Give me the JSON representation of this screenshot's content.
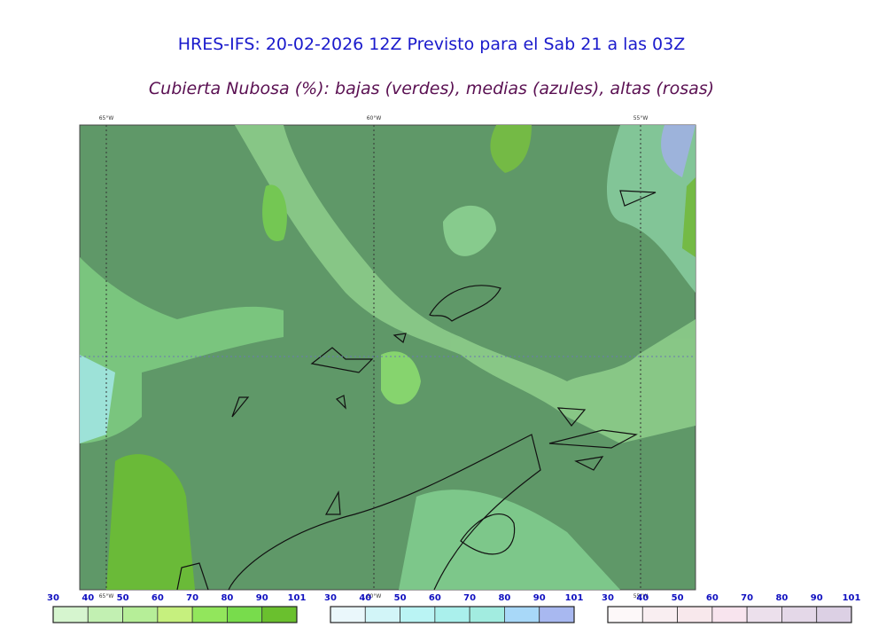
{
  "header": {
    "title": "HRES-IFS: 20-02-2026 12Z Previsto para el Sab 21 a las 03Z",
    "subtitle": "Cubierta Nubosa (%): bajas (verdes), medias (azules), altas (rosas)"
  },
  "map": {
    "longitudes_top": [
      "65°W",
      "60°W",
      "55°W"
    ],
    "longitudes_bottom": [
      "65°W",
      "60°W",
      "55°W"
    ]
  },
  "legends": [
    {
      "ticks": [
        30,
        40,
        50,
        60,
        70,
        80,
        90,
        101
      ],
      "colors": [
        "#d6f5cf",
        "#c2f0b2",
        "#b6ee98",
        "#c6f07e",
        "#92e65c",
        "#78dc4c",
        "#6ac02e"
      ]
    },
    {
      "ticks": [
        30,
        40,
        50,
        60,
        70,
        80,
        90,
        101
      ],
      "colors": [
        "#eaf7fb",
        "#d2f5f8",
        "#baf4f4",
        "#aaf0ec",
        "#a2ece0",
        "#a8d8f8",
        "#a8b8f0"
      ]
    },
    {
      "ticks": [
        30,
        40,
        50,
        60,
        70,
        80,
        90,
        101
      ],
      "colors": [
        "#fdf8f9",
        "#f9eef1",
        "#f8e8ec",
        "#f8e4ee",
        "#ece0ec",
        "#e4d8e8",
        "#dcd0e4"
      ]
    }
  ]
}
